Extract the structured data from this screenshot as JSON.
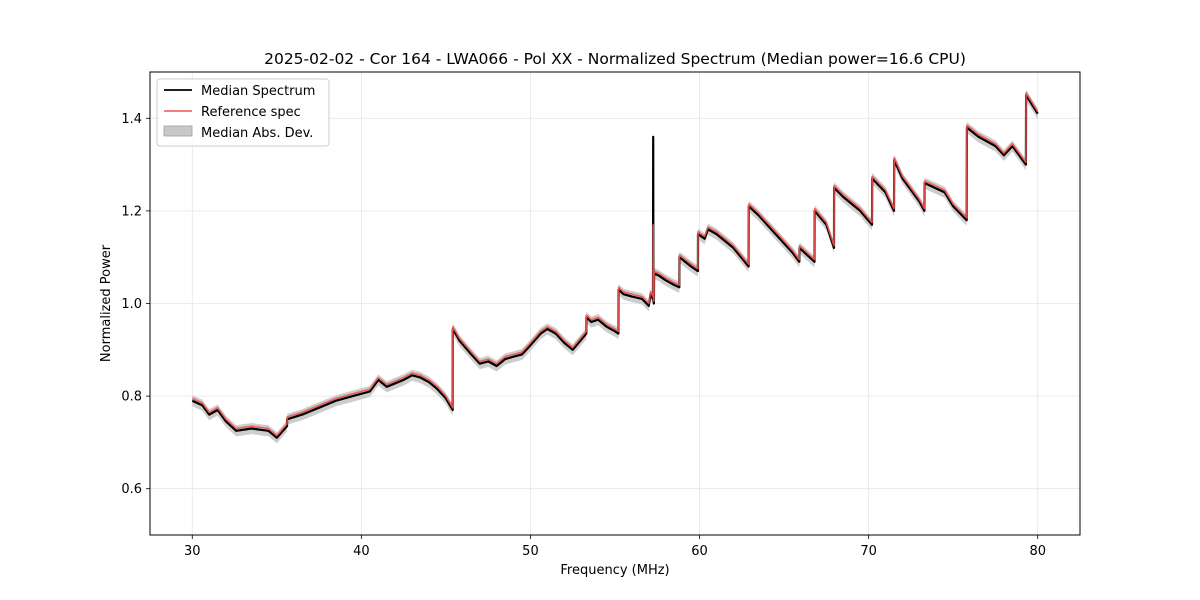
{
  "chart_data": {
    "type": "line",
    "title": "2025-02-02 - Cor 164 - LWA066 - Pol XX - Normalized Spectrum (Median power=16.6 CPU)",
    "xlabel": "Frequency (MHz)",
    "ylabel": "Normalized Power",
    "xlim": [
      27.5,
      82.5
    ],
    "ylim": [
      0.5,
      1.5
    ],
    "xticks": [
      30,
      40,
      50,
      60,
      70,
      80
    ],
    "yticks": [
      0.6,
      0.8,
      1.0,
      1.2,
      1.4
    ],
    "xtick_labels": [
      "30",
      "40",
      "50",
      "60",
      "70",
      "80"
    ],
    "ytick_labels": [
      "0.6",
      "0.8",
      "1.0",
      "1.2",
      "1.4"
    ],
    "grid": true,
    "legend_position": "upper-left",
    "legend": [
      {
        "label": "Median Spectrum",
        "color": "#000000",
        "kind": "line"
      },
      {
        "label": "Reference spec",
        "color": "#ef5350",
        "kind": "line"
      },
      {
        "label": "Median Abs. Dev.",
        "color": "#bdbdbd",
        "kind": "patch"
      }
    ],
    "mad_width": 0.012,
    "series": [
      {
        "name": "Median Spectrum",
        "color": "#000000",
        "x": [
          30.0,
          30.6,
          31.0,
          31.5,
          32.0,
          32.6,
          33.5,
          34.5,
          35.0,
          35.6,
          35.61,
          36.5,
          37.5,
          38.5,
          39.5,
          40.5,
          41.0,
          41.5,
          42.5,
          43.0,
          43.5,
          44.0,
          44.5,
          45.0,
          45.4,
          45.41,
          45.8,
          46.5,
          47.0,
          47.5,
          48.0,
          48.5,
          49.0,
          49.5,
          50.0,
          50.6,
          51.0,
          51.5,
          52.0,
          52.5,
          53.3,
          53.31,
          53.6,
          54.0,
          54.5,
          55.0,
          55.2,
          55.21,
          55.5,
          56.0,
          56.6,
          57.0,
          57.1,
          57.25,
          57.26,
          57.27,
          57.3,
          57.31,
          57.6,
          58.0,
          58.5,
          58.8,
          58.81,
          59.5,
          59.9,
          59.91,
          60.3,
          60.5,
          61.0,
          62.0,
          62.9,
          62.91,
          63.5,
          64.5,
          65.5,
          65.9,
          65.91,
          66.5,
          66.8,
          66.81,
          67.5,
          67.95,
          67.96,
          68.5,
          69.5,
          70.2,
          70.21,
          71.0,
          71.5,
          71.51,
          72.0,
          73.0,
          73.3,
          73.31,
          74.5,
          75.0,
          75.8,
          75.81,
          76.5,
          77.5,
          78.0,
          78.5,
          79.3,
          79.31,
          80.0
        ],
        "values": [
          0.79,
          0.78,
          0.76,
          0.77,
          0.745,
          0.725,
          0.73,
          0.725,
          0.71,
          0.735,
          0.75,
          0.76,
          0.775,
          0.79,
          0.8,
          0.81,
          0.835,
          0.82,
          0.835,
          0.845,
          0.84,
          0.83,
          0.815,
          0.795,
          0.77,
          0.945,
          0.92,
          0.89,
          0.87,
          0.875,
          0.865,
          0.88,
          0.885,
          0.89,
          0.91,
          0.935,
          0.945,
          0.935,
          0.915,
          0.9,
          0.935,
          0.97,
          0.96,
          0.965,
          0.95,
          0.94,
          0.935,
          1.03,
          1.02,
          1.015,
          1.01,
          0.995,
          1.02,
          1.01,
          1.36,
          1.01,
          1.0,
          1.065,
          1.06,
          1.05,
          1.04,
          1.035,
          1.1,
          1.08,
          1.07,
          1.15,
          1.14,
          1.16,
          1.15,
          1.12,
          1.08,
          1.21,
          1.19,
          1.15,
          1.11,
          1.09,
          1.12,
          1.1,
          1.09,
          1.2,
          1.17,
          1.12,
          1.25,
          1.23,
          1.2,
          1.17,
          1.27,
          1.24,
          1.2,
          1.31,
          1.27,
          1.22,
          1.2,
          1.26,
          1.24,
          1.21,
          1.18,
          1.38,
          1.36,
          1.34,
          1.32,
          1.34,
          1.3,
          1.45,
          1.41
        ]
      },
      {
        "name": "Reference spec",
        "color": "#ef5350",
        "x": [
          30.0,
          30.6,
          31.0,
          31.5,
          32.0,
          32.6,
          33.5,
          34.5,
          35.0,
          35.6,
          35.61,
          36.5,
          37.5,
          38.5,
          39.5,
          40.5,
          41.0,
          41.5,
          42.5,
          43.0,
          43.5,
          44.0,
          44.5,
          45.0,
          45.4,
          45.41,
          45.8,
          46.5,
          47.0,
          47.5,
          48.0,
          48.5,
          49.0,
          49.5,
          50.0,
          50.6,
          51.0,
          51.5,
          52.0,
          52.5,
          53.3,
          53.31,
          53.6,
          54.0,
          54.5,
          55.0,
          55.2,
          55.21,
          55.5,
          56.0,
          56.6,
          57.0,
          57.1,
          57.25,
          57.26,
          57.27,
          57.3,
          57.31,
          57.6,
          58.0,
          58.5,
          58.8,
          58.81,
          59.5,
          59.9,
          59.91,
          60.3,
          60.5,
          61.0,
          62.0,
          62.9,
          62.91,
          63.5,
          64.5,
          65.5,
          65.9,
          65.91,
          66.5,
          66.8,
          66.81,
          67.5,
          67.95,
          67.96,
          68.5,
          69.5,
          70.2,
          70.21,
          71.0,
          71.5,
          71.51,
          72.0,
          73.0,
          73.3,
          73.31,
          74.5,
          75.0,
          75.8,
          75.81,
          76.5,
          77.5,
          78.0,
          78.5,
          79.3,
          79.31,
          80.0
        ],
        "values": [
          0.795,
          0.785,
          0.765,
          0.775,
          0.75,
          0.73,
          0.735,
          0.73,
          0.715,
          0.74,
          0.755,
          0.765,
          0.78,
          0.795,
          0.805,
          0.815,
          0.84,
          0.825,
          0.84,
          0.85,
          0.845,
          0.835,
          0.82,
          0.8,
          0.775,
          0.95,
          0.925,
          0.895,
          0.875,
          0.88,
          0.87,
          0.885,
          0.89,
          0.895,
          0.915,
          0.94,
          0.95,
          0.94,
          0.92,
          0.905,
          0.94,
          0.975,
          0.965,
          0.97,
          0.955,
          0.945,
          0.94,
          1.035,
          1.025,
          1.02,
          1.015,
          1.0,
          1.025,
          1.015,
          1.17,
          1.015,
          1.005,
          1.07,
          1.065,
          1.055,
          1.045,
          1.04,
          1.105,
          1.085,
          1.075,
          1.155,
          1.145,
          1.165,
          1.155,
          1.125,
          1.085,
          1.215,
          1.195,
          1.155,
          1.115,
          1.095,
          1.125,
          1.105,
          1.095,
          1.205,
          1.175,
          1.125,
          1.255,
          1.235,
          1.205,
          1.175,
          1.275,
          1.245,
          1.205,
          1.315,
          1.275,
          1.225,
          1.205,
          1.265,
          1.245,
          1.215,
          1.185,
          1.385,
          1.365,
          1.345,
          1.325,
          1.345,
          1.305,
          1.455,
          1.415
        ]
      }
    ]
  }
}
